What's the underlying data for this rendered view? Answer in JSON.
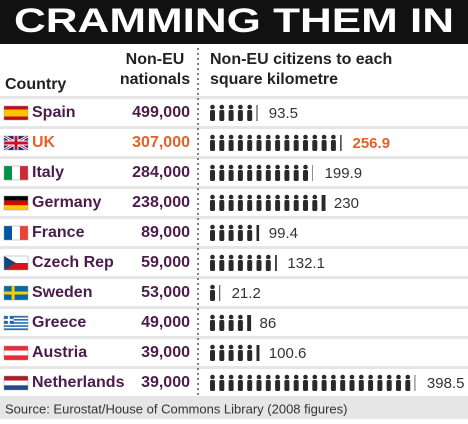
{
  "chart_data": {
    "type": "pictogram",
    "title": "CRAMMING THEM IN",
    "category_header": "Country",
    "nationals_header": [
      "Non-EU",
      "nationals"
    ],
    "density_header": [
      "Non-EU citizens to each",
      "square kilometre"
    ],
    "categories": [
      "Spain",
      "UK",
      "Italy",
      "Germany",
      "France",
      "Czech Rep",
      "Sweden",
      "Greece",
      "Austria",
      "Netherlands"
    ],
    "nationals": [
      499000,
      307000,
      284000,
      238000,
      89000,
      59000,
      53000,
      49000,
      39000,
      39000
    ],
    "nationals_labels": [
      "499,000",
      "307,000",
      "284,000",
      "238,000",
      "89,000",
      "59,000",
      "53,000",
      "49,000",
      "39,000",
      "39,000"
    ],
    "density": [
      93.5,
      256.9,
      199.9,
      230,
      99.4,
      132.1,
      21.2,
      86,
      100.6,
      398.5
    ],
    "row_colors": [
      "#4b1c4b",
      "#e4602a",
      "#4b1c4b",
      "#4b1c4b",
      "#4b1c4b",
      "#4b1c4b",
      "#4b1c4b",
      "#4b1c4b",
      "#4b1c4b",
      "#4b1c4b"
    ],
    "icon_color": "#2a2a2a",
    "source": "Source: Eurostat/House of Commons Library (2008 figures)"
  }
}
